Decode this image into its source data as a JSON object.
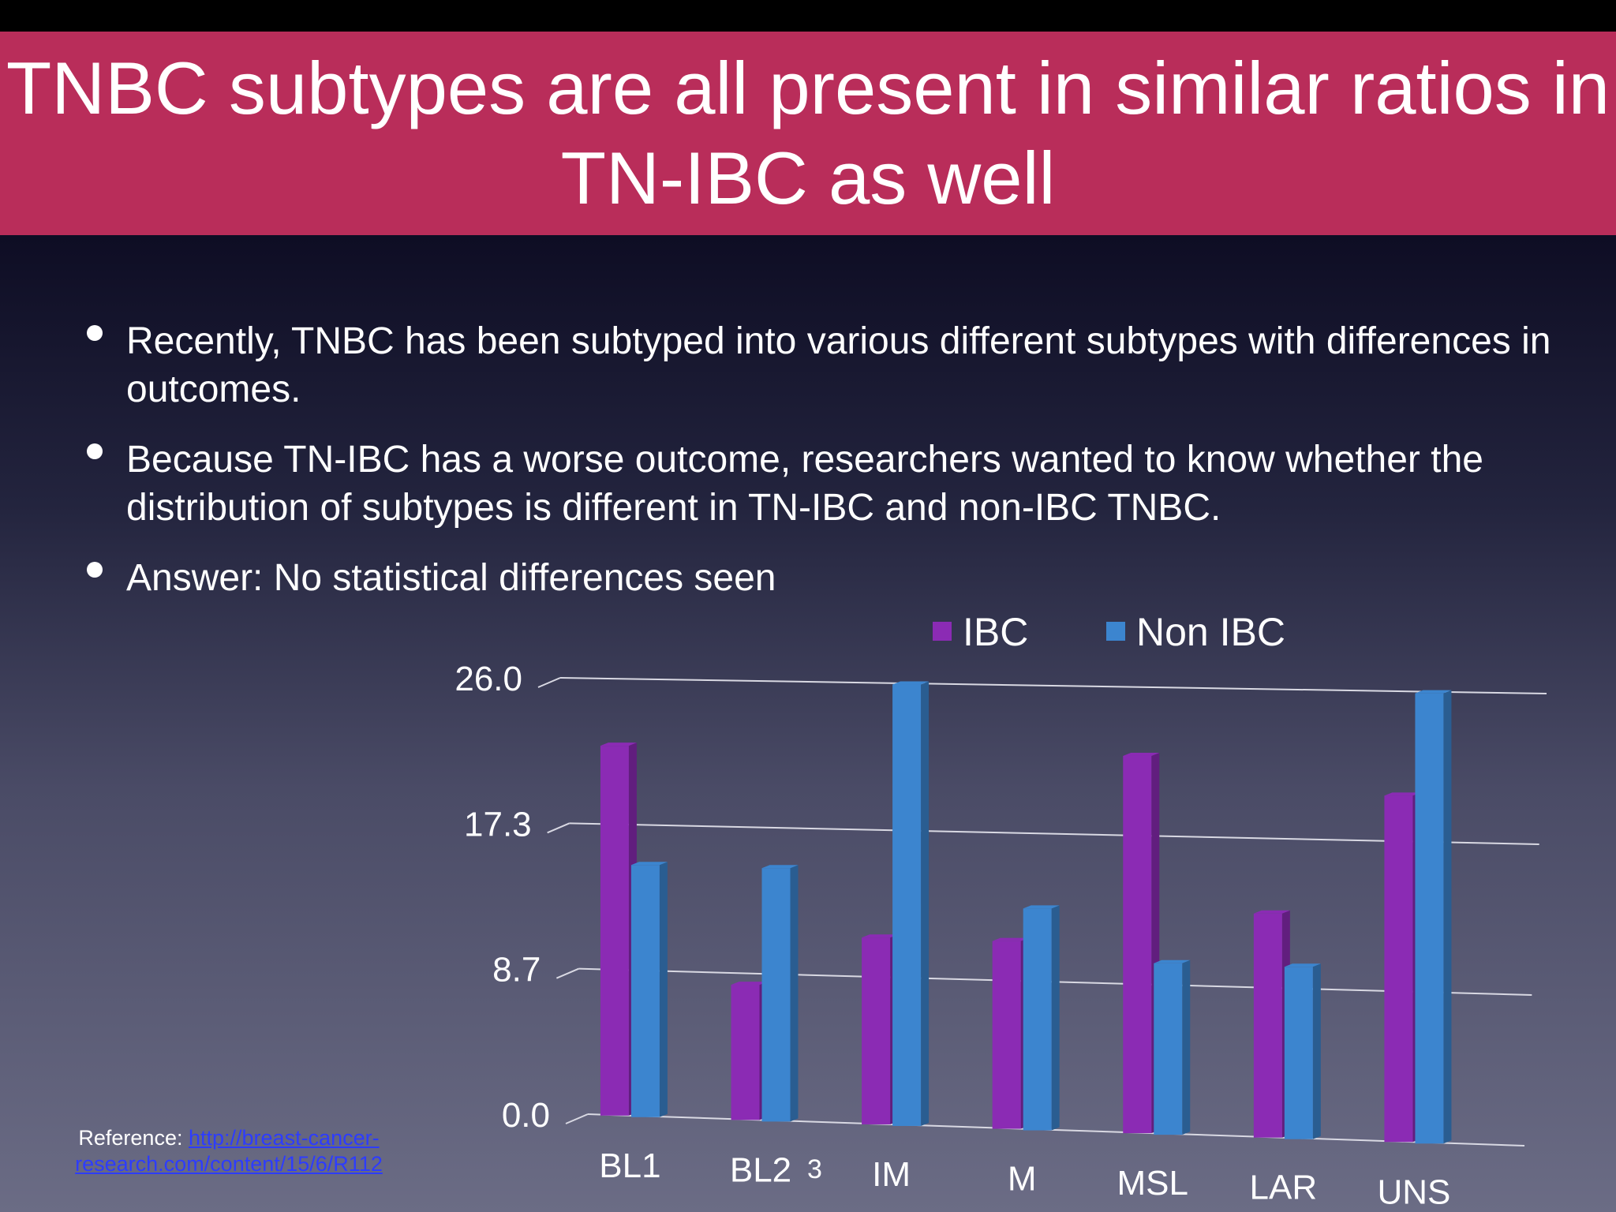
{
  "slide": {
    "title_lines": [
      "TNBC subtypes are all present in similar ratios in",
      "TN-IBC as well"
    ],
    "bullets": [
      "Recently, TNBC has been subtyped into various different subtypes with differences in outcomes.",
      "Because TN-IBC has a worse outcome, researchers wanted to know whether the distribution of subtypes is different in TN-IBC and non-IBC TNBC.",
      "Answer: No statistical differences seen"
    ],
    "reference_label": "Reference:",
    "reference_link": "http://breast-cancer-research.com/content/15/6/R112",
    "page_number": "3",
    "colors": {
      "banner": "#b92d5a",
      "background_top": "#0e0d24",
      "background_bottom": "#6b6c85",
      "link": "#2d3cff"
    }
  },
  "chart_data": {
    "type": "bar",
    "style": "3d-perspective",
    "categories": [
      "BL1",
      "BL2",
      "IM",
      "M",
      "MSL",
      "LAR",
      "UNS"
    ],
    "series": [
      {
        "name": "IBC",
        "color": "#8b2bb4",
        "values": [
          22,
          8,
          11,
          11,
          22,
          13,
          20
        ]
      },
      {
        "name": "Non IBC",
        "color": "#3c85cf",
        "values": [
          15,
          15,
          26,
          13,
          10,
          10,
          26
        ]
      }
    ],
    "y_ticks": [
      "0.0",
      "8.7",
      "17.3",
      "26.0"
    ],
    "ylim": [
      0,
      26
    ],
    "grid": true,
    "legend": "top"
  }
}
